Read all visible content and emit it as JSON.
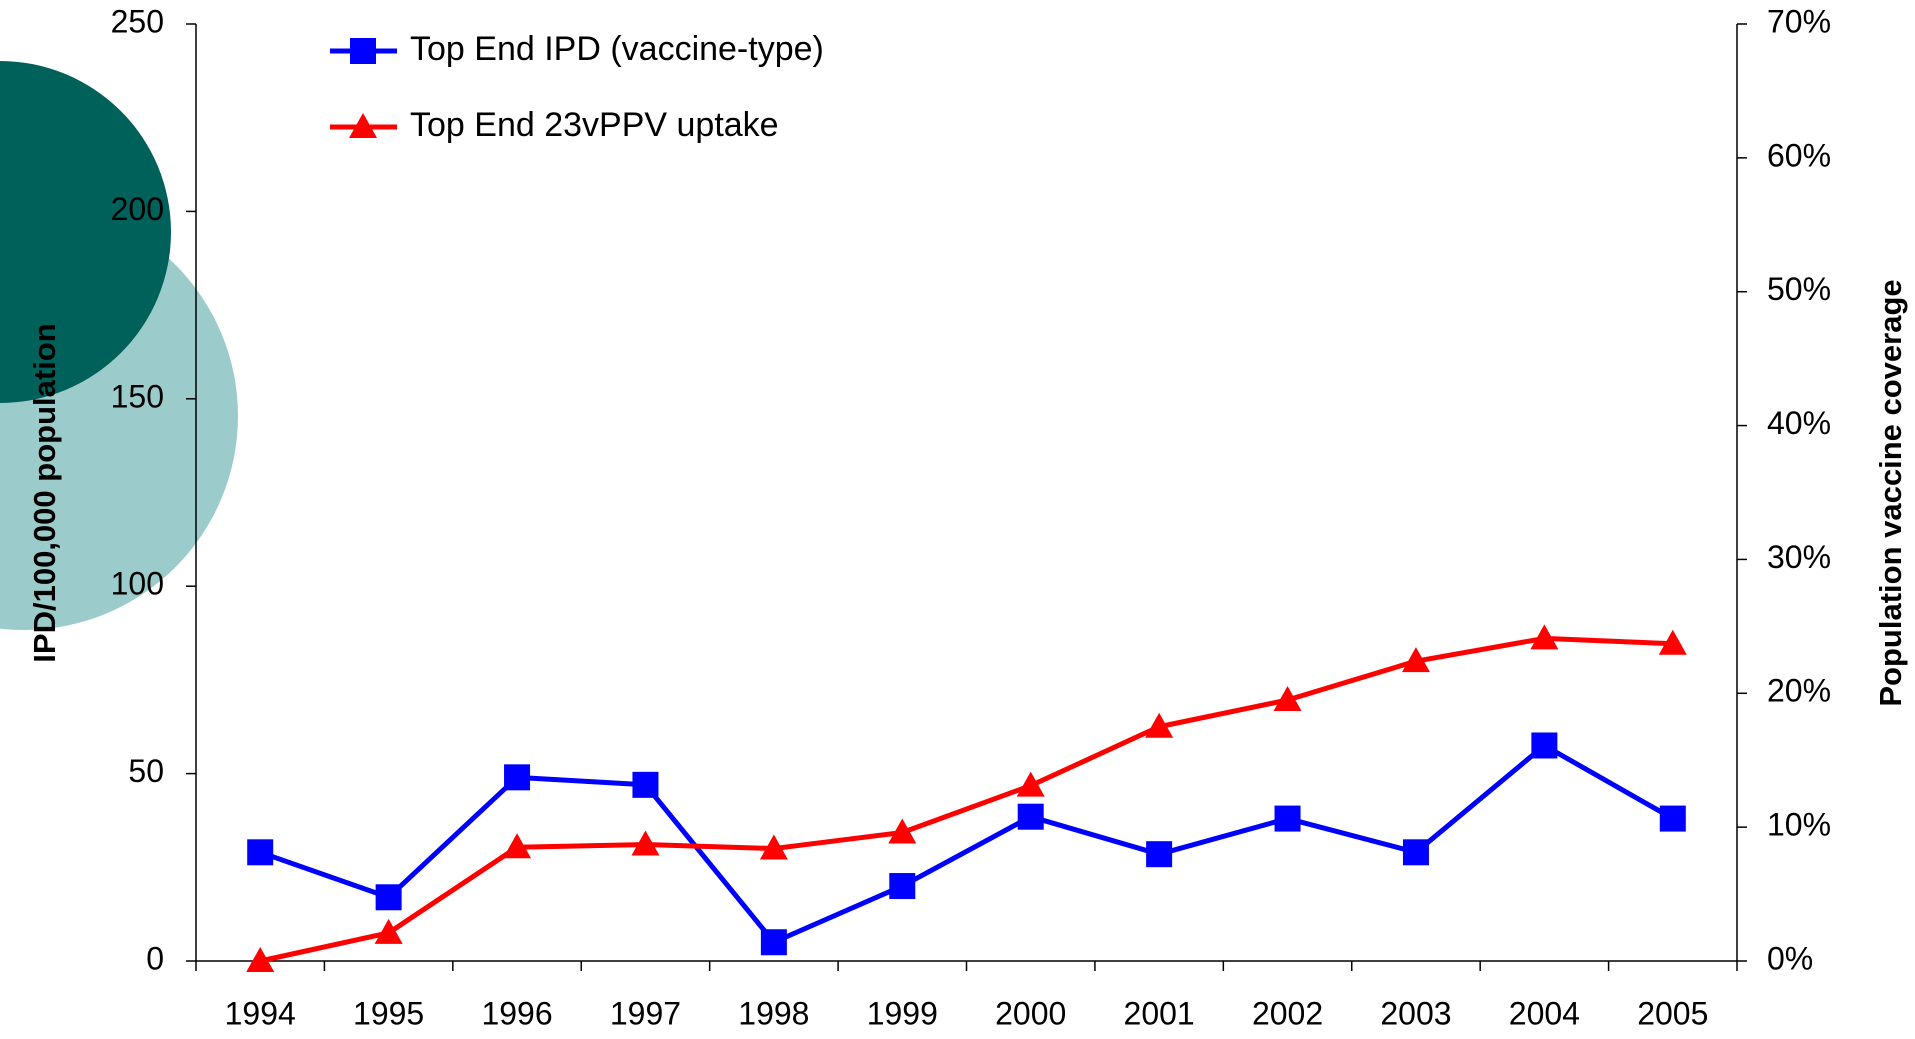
{
  "chart_data": {
    "type": "line",
    "categories": [
      "1994",
      "1995",
      "1996",
      "1997",
      "1998",
      "1999",
      "2000",
      "2001",
      "2002",
      "2003",
      "2004",
      "2005"
    ],
    "series": [
      {
        "name": "Top End IPD (vaccine-type)",
        "color": "#0000ff",
        "marker": "square",
        "axis": "y",
        "values": [
          29,
          17,
          49,
          47,
          5,
          20,
          38.5,
          28.5,
          38,
          29,
          57.5,
          38
        ]
      },
      {
        "name": "Top End 23vPPV uptake",
        "color": "#ff0000",
        "marker": "triangle",
        "axis": "y2",
        "values": [
          0,
          2.1,
          8.5,
          8.7,
          8.4,
          9.6,
          13.1,
          17.5,
          19.5,
          22.4,
          24.1,
          23.7
        ]
      }
    ],
    "ylabel": "IPD/100,000 population",
    "y2label": "Population vaccine coverage",
    "ylim": [
      0,
      250
    ],
    "yticks": [
      0,
      50,
      100,
      150,
      200,
      250
    ],
    "y2lim": [
      0,
      70
    ],
    "y2ticks": [
      {
        "value": 0,
        "label": "0%"
      },
      {
        "value": 10,
        "label": "10%"
      },
      {
        "value": 20,
        "label": "20%"
      },
      {
        "value": 30,
        "label": "30%"
      },
      {
        "value": 40,
        "label": "40%"
      },
      {
        "value": 50,
        "label": "50%"
      },
      {
        "value": 60,
        "label": "60%"
      },
      {
        "value": 70,
        "label": "70%"
      }
    ],
    "grid": false,
    "legend": "upper left"
  }
}
